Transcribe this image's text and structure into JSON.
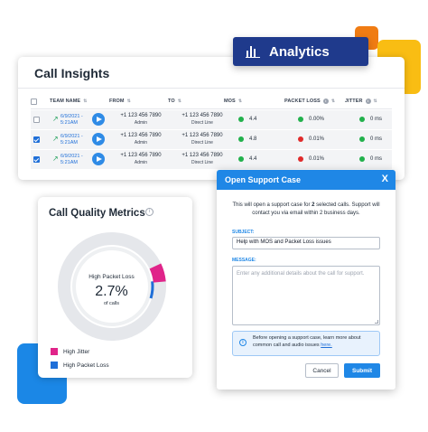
{
  "analytics_badge": {
    "label": "Analytics"
  },
  "call_insights": {
    "title": "Call Insights",
    "columns": [
      "TEAM NAME",
      "FROM",
      "TO",
      "MOS",
      "PACKET LOSS",
      "JITTER"
    ],
    "rows": [
      {
        "checked": false,
        "date": "6/9/2021 -",
        "time": "5:21AM",
        "from": "+1 123 456 7890",
        "from_sub": "Admin",
        "to": "+1 123 456 7890",
        "to_sub": "Direct Line",
        "mos": "4.4",
        "mos_status": "green",
        "packet_loss": "0.00%",
        "packet_status": "green",
        "jitter": "0 ms",
        "jitter_status": "green"
      },
      {
        "checked": true,
        "date": "6/9/2021 -",
        "time": "5:21AM",
        "from": "+1 123 456 7890",
        "from_sub": "Admin",
        "to": "+1 123 456 7890",
        "to_sub": "Direct Line",
        "mos": "4.8",
        "mos_status": "green",
        "packet_loss": "0.01%",
        "packet_status": "red",
        "jitter": "0 ms",
        "jitter_status": "green"
      },
      {
        "checked": true,
        "date": "6/9/2021 -",
        "time": "5:21AM",
        "from": "+1 123 456 7890",
        "from_sub": "Admin",
        "to": "+1 123 456 7890",
        "to_sub": "Direct Line",
        "mos": "4.4",
        "mos_status": "green",
        "packet_loss": "0.01%",
        "packet_status": "red",
        "jitter": "0 ms",
        "jitter_status": "green"
      }
    ]
  },
  "call_quality": {
    "title": "Call Quality Metrics",
    "donut_label": "High Packet Loss",
    "donut_value": "2.7%",
    "donut_sublabel": "of calls",
    "segments": {
      "high_packet_loss_fraction": 0.027,
      "high_jitter_fraction": 0.055
    },
    "legend": [
      {
        "label": "High Jitter",
        "color": "#e0248a"
      },
      {
        "label": "High Packet Loss",
        "color": "#1f6fd8"
      }
    ]
  },
  "support_modal": {
    "title": "Open Support Case",
    "close_glyph": "X",
    "intro_part1": "This will open a support case for ",
    "intro_count": "2",
    "intro_part2": " selected calls. Support will contact you via email within 2 business days.",
    "subject_label": "SUBJECT:",
    "subject_value": "Help with MOS and Packet Loss issues",
    "message_label": "MESSAGE:",
    "message_placeholder": "Enter any additional details about the call for support.",
    "notice_text": "Before opening a support case, learn more about common call and audio issues ",
    "notice_link": "here.",
    "cancel_label": "Cancel",
    "submit_label": "Submit"
  }
}
